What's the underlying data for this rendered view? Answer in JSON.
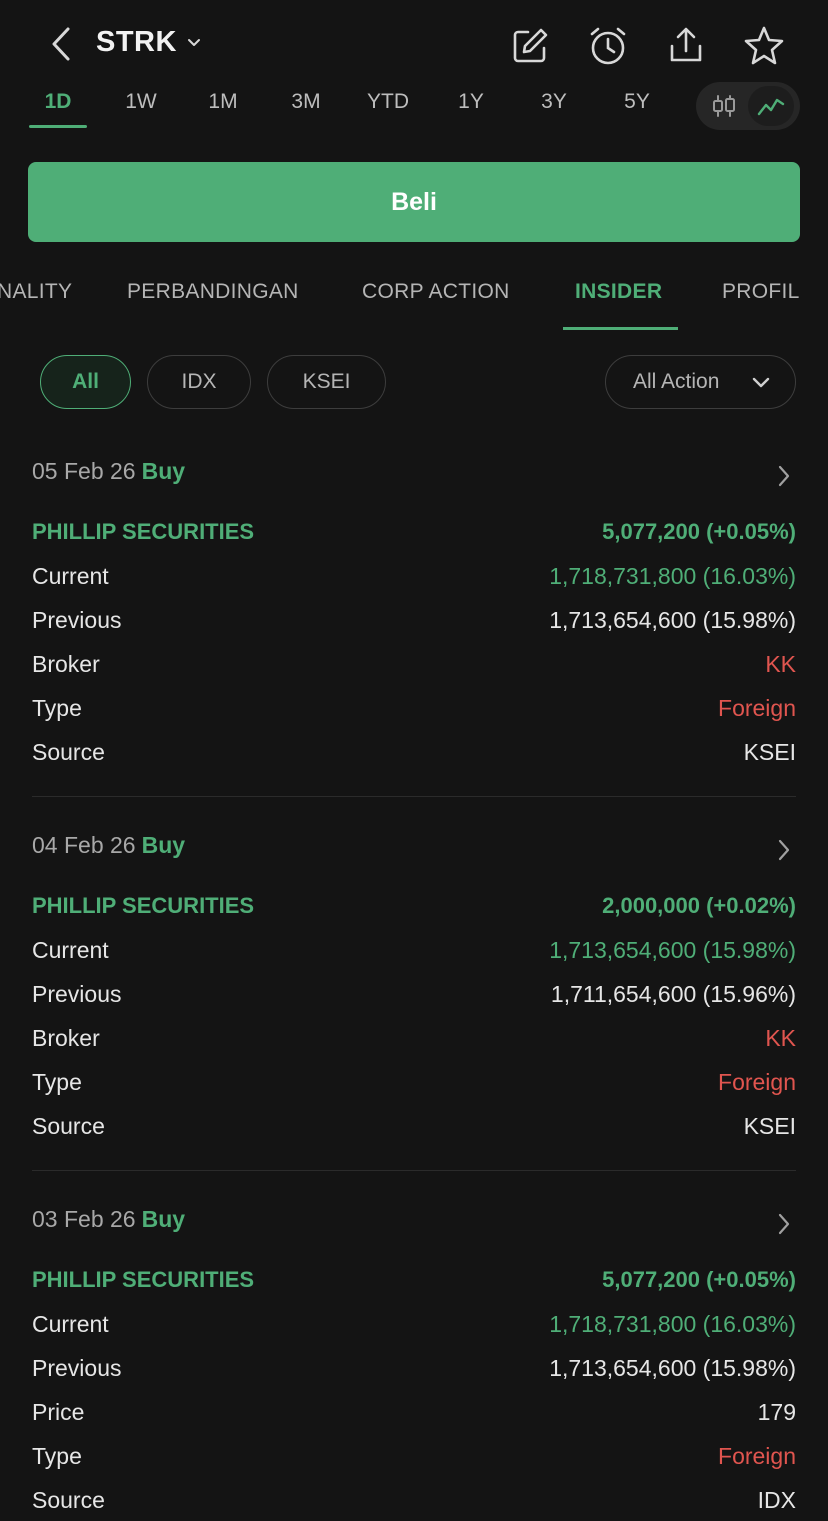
{
  "header": {
    "ticker": "STRK",
    "icons": [
      "chevron-left-icon",
      "edit-icon",
      "alarm-icon",
      "share-icon",
      "star-icon"
    ]
  },
  "timeframes": [
    "1D",
    "1W",
    "1M",
    "3M",
    "YTD",
    "1Y",
    "3Y",
    "5Y"
  ],
  "active_timeframe": "1D",
  "buy_label": "Beli",
  "section_tabs": [
    "NALITY",
    "PERBANDINGAN",
    "CORP ACTION",
    "INSIDER",
    "PROFIL"
  ],
  "active_section_tab": "INSIDER",
  "filters": {
    "chips": [
      "All",
      "IDX",
      "KSEI"
    ],
    "active_chip": "All",
    "action_dropdown": "All Action"
  },
  "colors": {
    "accent_green": "#4fae77",
    "negative_red": "#e0554f",
    "background": "#141414"
  },
  "entries": [
    {
      "date": "05 Feb 26",
      "action": "Buy",
      "name": "PHILLIP SECURITIES",
      "change": "5,077,200 (+0.05%)",
      "details": [
        {
          "label": "Current",
          "value": "1,718,731,800 (16.03%)",
          "tone": "green"
        },
        {
          "label": "Previous",
          "value": "1,713,654,600 (15.98%)",
          "tone": "neutral"
        },
        {
          "label": "Broker",
          "value": "KK",
          "tone": "red"
        },
        {
          "label": "Type",
          "value": "Foreign",
          "tone": "red"
        },
        {
          "label": "Source",
          "value": "KSEI",
          "tone": "neutral"
        }
      ]
    },
    {
      "date": "04 Feb 26",
      "action": "Buy",
      "name": "PHILLIP SECURITIES",
      "change": "2,000,000 (+0.02%)",
      "details": [
        {
          "label": "Current",
          "value": "1,713,654,600 (15.98%)",
          "tone": "green"
        },
        {
          "label": "Previous",
          "value": "1,711,654,600 (15.96%)",
          "tone": "neutral"
        },
        {
          "label": "Broker",
          "value": "KK",
          "tone": "red"
        },
        {
          "label": "Type",
          "value": "Foreign",
          "tone": "red"
        },
        {
          "label": "Source",
          "value": "KSEI",
          "tone": "neutral"
        }
      ]
    },
    {
      "date": "03 Feb 26",
      "action": "Buy",
      "name": "PHILLIP SECURITIES",
      "change": "5,077,200 (+0.05%)",
      "details": [
        {
          "label": "Current",
          "value": "1,718,731,800 (16.03%)",
          "tone": "green"
        },
        {
          "label": "Previous",
          "value": "1,713,654,600 (15.98%)",
          "tone": "neutral"
        },
        {
          "label": "Price",
          "value": "179",
          "tone": "neutral"
        },
        {
          "label": "Type",
          "value": "Foreign",
          "tone": "red"
        },
        {
          "label": "Source",
          "value": "IDX",
          "tone": "neutral"
        }
      ]
    }
  ]
}
